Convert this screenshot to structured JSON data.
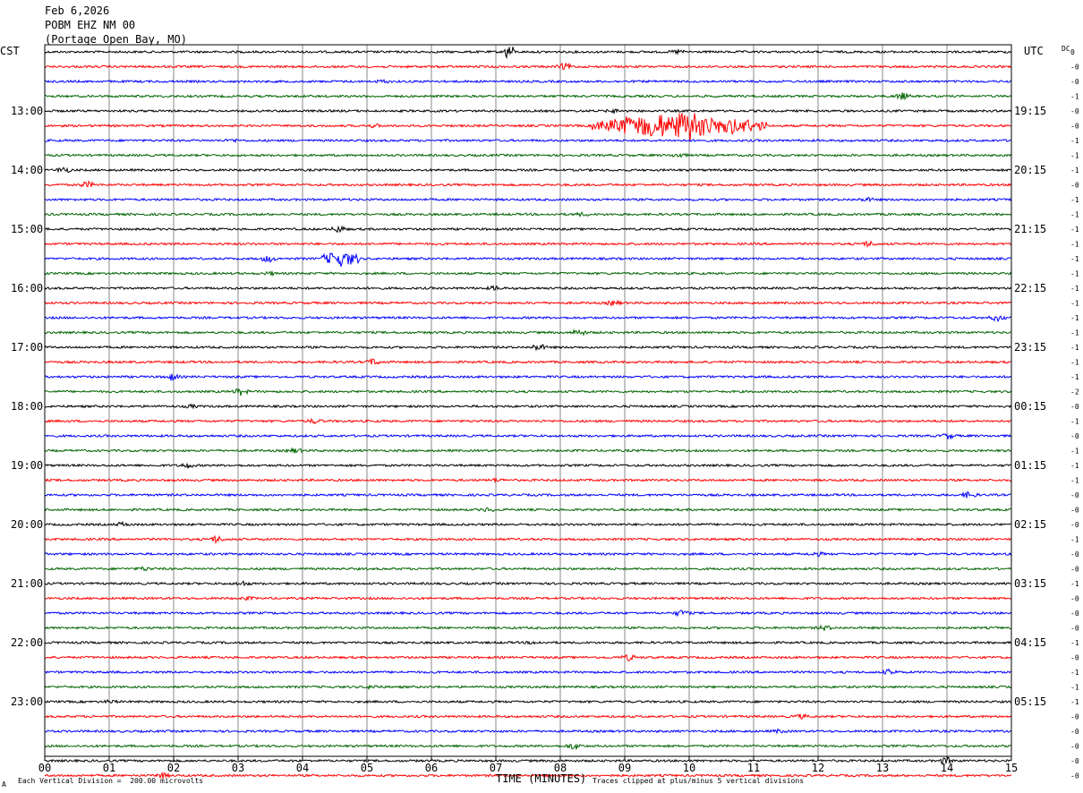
{
  "header": {
    "date": "Feb 6,2026",
    "station": "POBM EHZ NM 00",
    "location": "(Portage Open Bay, MO)"
  },
  "left_axis_title": "CST",
  "right_axis_title": "UTC",
  "dc_title": "DC",
  "footer": {
    "scale_note": "Each Vertical Division =  200.00 microvolts",
    "x_title": "TIME (MINUTES)",
    "clip_note": "Traces clipped at plus/minus 5 vertical divisions",
    "corner_mark": "A"
  },
  "chart_data": {
    "type": "line",
    "title": "Feb 6,2026",
    "xlabel": "TIME (MINUTES)",
    "x_ticks": [
      "00",
      "01",
      "02",
      "03",
      "04",
      "05",
      "06",
      "07",
      "08",
      "09",
      "10",
      "11",
      "12",
      "13",
      "14",
      "15"
    ],
    "xlim": [
      0,
      15
    ],
    "trace_colors": [
      "#000000",
      "#ff0000",
      "#0000ff",
      "#006400"
    ],
    "left_hour_labels": [
      "13:00",
      "14:00",
      "15:00",
      "16:00",
      "17:00",
      "18:00",
      "19:00",
      "20:00",
      "21:00",
      "22:00",
      "23:00"
    ],
    "right_hour_labels": [
      "19:15",
      "20:15",
      "21:15",
      "22:15",
      "23:15",
      "00:15",
      "01:15",
      "02:15",
      "03:15",
      "04:15",
      "05:15"
    ],
    "dc_offsets": [
      "0",
      "-0",
      "-0",
      "-1",
      "-0",
      "-0",
      "-1",
      "-1",
      "-1",
      "-0",
      "-1",
      "-1",
      "-1",
      "-1",
      "-1",
      "-1",
      "-1",
      "-1",
      "-1",
      "-1",
      "-1",
      "-1",
      "-1",
      "-2",
      "-0",
      "-1",
      "-0",
      "-1",
      "-1",
      "-1",
      "-0",
      "-0",
      "-0",
      "-1",
      "-0",
      "-0",
      "-1",
      "-0",
      "-0",
      "-0",
      "-1",
      "-0",
      "-1",
      "-1",
      "-1",
      "-0",
      "-0",
      "-0",
      "-0",
      "-0"
    ],
    "events": [
      {
        "row": 5,
        "start_min": 8.5,
        "end_min": 11.2,
        "label": "large event"
      },
      {
        "row": 0,
        "start_min": 7.1,
        "end_min": 7.3,
        "label": "burst"
      },
      {
        "row": 14,
        "start_min": 4.3,
        "end_min": 4.9,
        "label": "burst"
      }
    ]
  }
}
